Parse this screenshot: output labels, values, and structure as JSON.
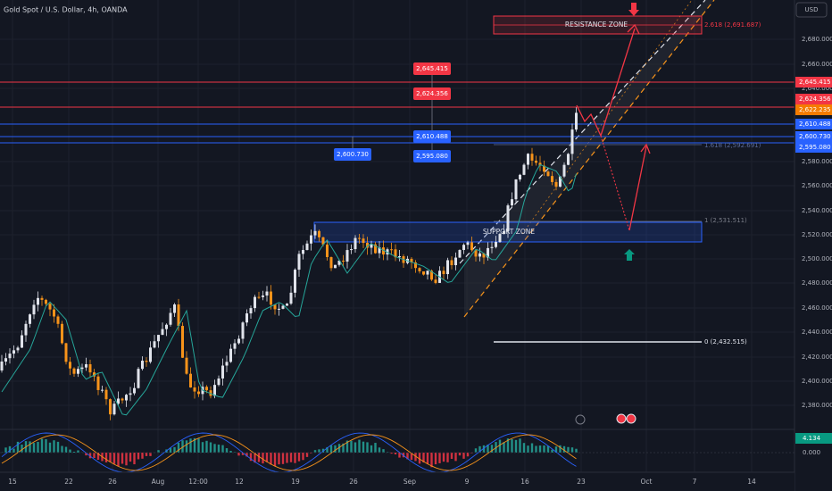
{
  "header": {
    "title": "Gold Spot / U.S. Dollar, 4h, OANDA",
    "currency": "USD"
  },
  "price_axis": {
    "labels": [
      "2,680.000",
      "2,660.000",
      "2,640.000",
      "2,580.000",
      "2,560.000",
      "2,540.000",
      "2,520.000",
      "2,500.000",
      "2,480.000",
      "2,460.000",
      "2,440.000",
      "2,420.000",
      "2,400.000",
      "2,380.000"
    ],
    "levels": [
      {
        "label": "2,645.415",
        "color": "#f23645"
      },
      {
        "label": "2,624.356",
        "color": "#f23645"
      },
      {
        "label": "2,622.235",
        "color": "#f57c00"
      },
      {
        "label": "2,610.488",
        "color": "#2962ff"
      },
      {
        "label": "2,600.730",
        "color": "#2962ff"
      },
      {
        "label": "2,595.080",
        "color": "#2962ff"
      }
    ]
  },
  "indicator_axis": {
    "value": "4.134",
    "value_color": "#089981",
    "zero": "0.000"
  },
  "time_axis": {
    "labels": [
      "15",
      "22",
      "26",
      "Aug",
      "12:00",
      "12",
      "19",
      "26",
      "Sep",
      "9",
      "16",
      "23",
      "Oct",
      "7",
      "14"
    ]
  },
  "annotations": {
    "resistance": "RESISTANCE ZONE",
    "fib_2618": "2.618 (2,691.687)",
    "fib_1618": "1.618 (2,592.691)",
    "fib_1": "1 (2,531.511)",
    "support": "SUPPORT ZONE",
    "fib_0": "0 (2,432.515)"
  },
  "chart_labels": [
    {
      "label": "2,645.415",
      "color": "#f23645"
    },
    {
      "label": "2,624.356",
      "color": "#f23645"
    },
    {
      "label": "2,610.488",
      "color": "#2962ff"
    },
    {
      "label": "2,595.080",
      "color": "#2962ff"
    },
    {
      "label": "2,600.730",
      "color": "#2962ff"
    }
  ]
}
